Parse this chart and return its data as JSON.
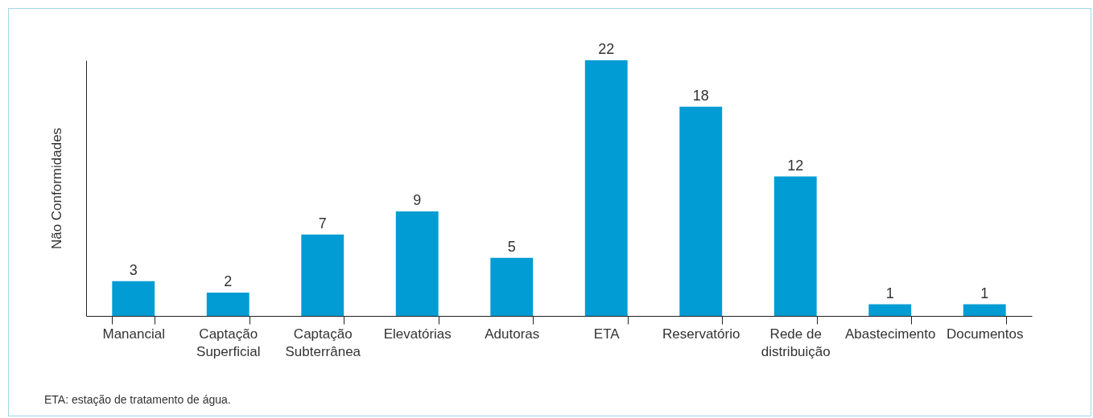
{
  "chart_data": {
    "type": "bar",
    "ylabel": "Não Conformidades",
    "categories": [
      "Manancial",
      "Captação Superficial",
      "Captação Subterrânea",
      "Elevatórias",
      "Adutoras",
      "ETA",
      "Reservatório",
      "Rede de distribuição",
      "Abastecimento",
      "Documentos"
    ],
    "values": [
      3,
      2,
      7,
      9,
      5,
      22,
      18,
      12,
      1,
      1
    ],
    "color": "#009cd3",
    "data_labels": true,
    "tick_labels": "x",
    "annotations": [
      "ETA: estação de tratamento de água."
    ]
  }
}
